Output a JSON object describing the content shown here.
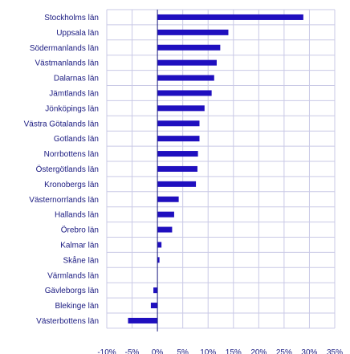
{
  "chart_data": {
    "type": "bar",
    "orientation": "horizontal",
    "title": "",
    "xlabel": "",
    "ylabel": "",
    "categories": [
      "Stockholms län",
      "Uppsala län",
      "Södermanlands län",
      "Västmanlands län",
      "Dalarnas län",
      "Jämtlands län",
      "Jönköpings län",
      "Västra Götalands län",
      "Gotlands län",
      "Norrbottens län",
      "Östergötlands län",
      "Kronobergs län",
      "Västernorrlands län",
      "Hallands län",
      "Örebro län",
      "Kalmar län",
      "Skåne län",
      "Värmlands län",
      "Gävleborgs län",
      "Blekinge län",
      "Västerbottens län"
    ],
    "values": [
      28.8,
      14.0,
      12.4,
      11.7,
      11.2,
      10.7,
      9.3,
      8.3,
      8.3,
      8.0,
      7.9,
      7.6,
      4.2,
      3.3,
      2.9,
      0.8,
      0.4,
      0.0,
      -0.8,
      -1.3,
      -5.8
    ],
    "xlim": [
      -10,
      35
    ],
    "xticks": [
      -10,
      -5,
      0,
      5,
      10,
      15,
      20,
      25,
      30,
      35
    ],
    "xtick_labels": [
      "-10%",
      "-5%",
      "0%",
      "5%",
      "10%",
      "15%",
      "20%",
      "25%",
      "30%",
      "35%"
    ],
    "grid": true,
    "bar_color": "#1f0fbf",
    "axis_color": "#1a1a80",
    "grid_color": "#c9c9e6"
  }
}
